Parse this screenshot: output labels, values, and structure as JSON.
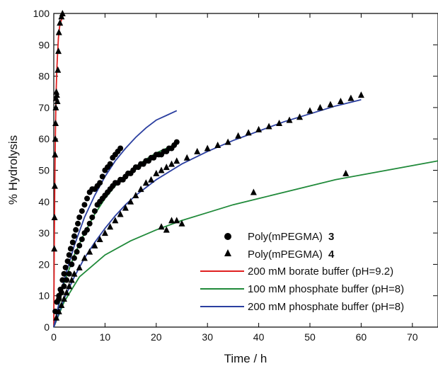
{
  "chart_data": {
    "type": "scatter",
    "title": "",
    "xlabel": "Time / h",
    "ylabel": "% Hydrolysis",
    "xlim": [
      0,
      75
    ],
    "ylim": [
      0,
      100
    ],
    "xticks": [
      0,
      10,
      20,
      30,
      40,
      50,
      60,
      70
    ],
    "yticks": [
      0,
      10,
      20,
      30,
      40,
      50,
      60,
      70,
      80,
      90,
      100
    ],
    "grid": false,
    "legend_position": "bottom-right",
    "series": [
      {
        "name": "Poly(mPEGMA)",
        "name_suffix": "3",
        "marker": "circle",
        "color": "#000000",
        "points": [
          [
            0.3,
            5
          ],
          [
            0.6,
            8
          ],
          [
            1,
            10
          ],
          [
            1.3,
            12
          ],
          [
            1.7,
            15
          ],
          [
            2,
            17
          ],
          [
            2.3,
            19
          ],
          [
            2.7,
            21
          ],
          [
            3,
            23
          ],
          [
            3.3,
            25
          ],
          [
            3.7,
            27
          ],
          [
            4,
            29
          ],
          [
            4.3,
            31
          ],
          [
            4.7,
            33
          ],
          [
            5,
            35
          ],
          [
            5.5,
            37
          ],
          [
            6,
            39
          ],
          [
            6.5,
            41
          ],
          [
            7,
            43
          ],
          [
            7.5,
            44
          ],
          [
            8,
            44
          ],
          [
            8.5,
            45
          ],
          [
            9,
            46
          ],
          [
            9.5,
            48
          ],
          [
            10,
            50
          ],
          [
            10.5,
            51
          ],
          [
            11,
            52
          ],
          [
            11.5,
            54
          ],
          [
            12,
            55
          ],
          [
            12.5,
            56
          ],
          [
            13,
            57
          ],
          [
            1,
            9
          ],
          [
            1.5,
            11
          ],
          [
            2,
            13
          ],
          [
            2.5,
            15
          ],
          [
            3,
            17
          ],
          [
            3.5,
            20
          ],
          [
            4,
            22
          ],
          [
            4.5,
            24
          ],
          [
            5,
            26
          ],
          [
            5.5,
            28
          ],
          [
            6,
            30
          ],
          [
            6.5,
            31
          ],
          [
            7,
            33
          ],
          [
            7.5,
            35
          ],
          [
            8,
            37
          ],
          [
            8.5,
            39
          ],
          [
            9,
            40
          ],
          [
            9.5,
            41
          ],
          [
            10,
            42
          ],
          [
            10.5,
            43
          ],
          [
            11,
            44
          ],
          [
            11.5,
            45
          ],
          [
            12,
            46
          ],
          [
            12.5,
            46
          ],
          [
            13,
            47
          ],
          [
            13.5,
            47
          ],
          [
            14,
            48
          ],
          [
            14.5,
            49
          ],
          [
            15,
            49
          ],
          [
            15.5,
            50
          ],
          [
            16,
            51
          ],
          [
            16.5,
            51
          ],
          [
            17,
            52
          ],
          [
            17.5,
            52
          ],
          [
            18,
            53
          ],
          [
            18.5,
            53
          ],
          [
            19,
            54
          ],
          [
            19.5,
            54
          ],
          [
            20,
            55
          ],
          [
            20.5,
            55
          ],
          [
            21,
            55
          ],
          [
            21.5,
            56
          ],
          [
            22,
            56
          ],
          [
            22.5,
            57
          ],
          [
            23,
            57
          ],
          [
            23.5,
            58
          ],
          [
            24,
            59
          ]
        ]
      },
      {
        "name": "Poly(mPEGMA)",
        "name_suffix": "4",
        "marker": "triangle",
        "color": "#000000",
        "points": [
          [
            0.1,
            25
          ],
          [
            0.15,
            35
          ],
          [
            0.2,
            45
          ],
          [
            0.25,
            55
          ],
          [
            0.3,
            60
          ],
          [
            0.35,
            65
          ],
          [
            0.4,
            70
          ],
          [
            0.45,
            73
          ],
          [
            0.5,
            75
          ],
          [
            0.6,
            74
          ],
          [
            0.7,
            72
          ],
          [
            0.8,
            82
          ],
          [
            0.9,
            88
          ],
          [
            1,
            94
          ],
          [
            1.2,
            97
          ],
          [
            1.5,
            99
          ],
          [
            1.7,
            100
          ],
          [
            0.5,
            3
          ],
          [
            1,
            5
          ],
          [
            1.5,
            7
          ],
          [
            2,
            9
          ],
          [
            2.5,
            11
          ],
          [
            3,
            13
          ],
          [
            3.5,
            15
          ],
          [
            4,
            17
          ],
          [
            5,
            19
          ],
          [
            6,
            22
          ],
          [
            7,
            24
          ],
          [
            8,
            26
          ],
          [
            9,
            28
          ],
          [
            10,
            30
          ],
          [
            11,
            32
          ],
          [
            12,
            34
          ],
          [
            13,
            36
          ],
          [
            14,
            38
          ],
          [
            15,
            40
          ],
          [
            16,
            42
          ],
          [
            17,
            44
          ],
          [
            18,
            46
          ],
          [
            19,
            47
          ],
          [
            20,
            49
          ],
          [
            21,
            50
          ],
          [
            22,
            51
          ],
          [
            23,
            52
          ],
          [
            24,
            53
          ],
          [
            21,
            32
          ],
          [
            22,
            31
          ],
          [
            23,
            34
          ],
          [
            24,
            34
          ],
          [
            25,
            33
          ],
          [
            26,
            54
          ],
          [
            28,
            56
          ],
          [
            30,
            57
          ],
          [
            32,
            58
          ],
          [
            34,
            59
          ],
          [
            36,
            61
          ],
          [
            38,
            62
          ],
          [
            40,
            63
          ],
          [
            42,
            64
          ],
          [
            44,
            65
          ],
          [
            46,
            66
          ],
          [
            48,
            67
          ],
          [
            50,
            69
          ],
          [
            52,
            70
          ],
          [
            54,
            71
          ],
          [
            56,
            72
          ],
          [
            58,
            73
          ],
          [
            60,
            74
          ],
          [
            39,
            43
          ],
          [
            57,
            49
          ]
        ]
      },
      {
        "name": "200 mM borate buffer (pH=9.2)",
        "marker": "line",
        "color": "#e02020",
        "points": [
          [
            0,
            0
          ],
          [
            0.1,
            25
          ],
          [
            0.2,
            45
          ],
          [
            0.3,
            60
          ],
          [
            0.4,
            70
          ],
          [
            0.5,
            77
          ],
          [
            0.6,
            82
          ],
          [
            0.7,
            86
          ],
          [
            0.8,
            89
          ],
          [
            0.9,
            92
          ],
          [
            1,
            94
          ],
          [
            1.2,
            96.5
          ],
          [
            1.5,
            98
          ],
          [
            1.8,
            99.5
          ]
        ]
      },
      {
        "name": "100 mM phosphate buffer (pH=8)",
        "marker": "line",
        "color": "#208a3a",
        "points_a": [
          [
            0,
            0
          ],
          [
            2,
            14
          ],
          [
            4,
            23
          ],
          [
            6,
            30
          ],
          [
            8,
            36
          ],
          [
            10,
            41
          ],
          [
            12,
            45
          ],
          [
            14,
            48.5
          ],
          [
            16,
            51
          ],
          [
            18,
            53.5
          ],
          [
            20,
            55.5
          ],
          [
            22,
            57
          ],
          [
            24,
            58.5
          ]
        ],
        "points_b": [
          [
            0,
            0
          ],
          [
            2,
            8
          ],
          [
            5,
            16
          ],
          [
            10,
            23
          ],
          [
            15,
            27.5
          ],
          [
            20,
            31
          ],
          [
            25,
            34
          ],
          [
            30,
            36.5
          ],
          [
            35,
            39
          ],
          [
            40,
            41
          ],
          [
            45,
            43
          ],
          [
            50,
            45
          ],
          [
            55,
            47
          ],
          [
            60,
            48.5
          ],
          [
            65,
            50
          ],
          [
            70,
            51.5
          ],
          [
            75,
            53
          ]
        ]
      },
      {
        "name": "200 mM phosphate buffer (pH=8)",
        "marker": "line",
        "color": "#2b3fa0",
        "points_a": [
          [
            0,
            0
          ],
          [
            2,
            15
          ],
          [
            4,
            26
          ],
          [
            6,
            35
          ],
          [
            8,
            42
          ],
          [
            10,
            48
          ],
          [
            12,
            53
          ],
          [
            14,
            57
          ],
          [
            16,
            60.5
          ],
          [
            18,
            63.5
          ],
          [
            20,
            66
          ],
          [
            22,
            67.5
          ],
          [
            24,
            69
          ]
        ],
        "points_b": [
          [
            0,
            0
          ],
          [
            2,
            9
          ],
          [
            4,
            16
          ],
          [
            6,
            22
          ],
          [
            8,
            27
          ],
          [
            10,
            31.5
          ],
          [
            12,
            35.5
          ],
          [
            14,
            39
          ],
          [
            16,
            42
          ],
          [
            18,
            44.5
          ],
          [
            20,
            47
          ],
          [
            25,
            52
          ],
          [
            30,
            56
          ],
          [
            35,
            59.5
          ],
          [
            40,
            62.5
          ],
          [
            45,
            65.5
          ],
          [
            50,
            68
          ],
          [
            55,
            70.5
          ],
          [
            60,
            72.5
          ]
        ]
      }
    ]
  }
}
